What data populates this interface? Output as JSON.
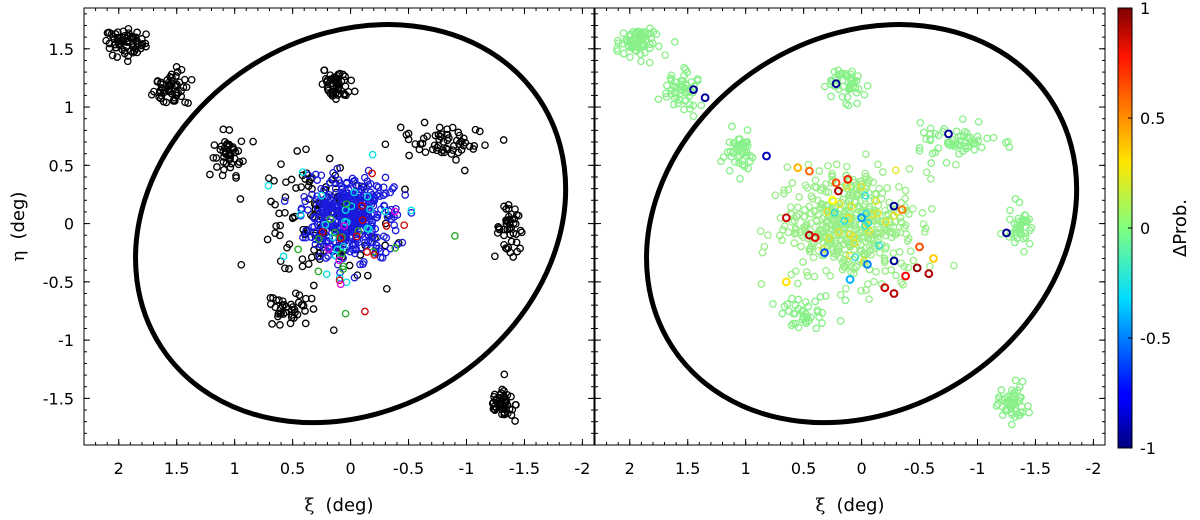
{
  "chart_data": [
    {
      "type": "scatter",
      "panel": "left",
      "xlabel_symbol": "ξ",
      "xlabel_unit": "(deg)",
      "ylabel_symbol": "η",
      "ylabel_unit": "(deg)",
      "xlim": [
        2.3,
        -2.1
      ],
      "ylim": [
        -1.9,
        1.85
      ],
      "xticks": [
        2,
        1.5,
        1,
        0.5,
        0,
        -0.5,
        -1,
        -1.5,
        -2
      ],
      "xtick_labels": [
        "2",
        "1.5",
        "1",
        "0.5",
        "0",
        "-0.5",
        "-1",
        "-1.5",
        "-2"
      ],
      "yticks": [
        1.5,
        1,
        0.5,
        0,
        -0.5,
        -1,
        -1.5
      ],
      "ytick_labels": [
        "1.5",
        "1",
        "0.5",
        "0",
        "-0.5",
        "-1",
        "-1.5"
      ],
      "ellipse": {
        "center": [
          0,
          0
        ],
        "semi_major": 1.95,
        "semi_minor": 1.6,
        "angle_deg": -33
      },
      "clusters": [
        {
          "center": [
            1.95,
            1.55
          ],
          "spread": [
            0.15,
            0.1
          ],
          "n": 70,
          "color": "#000000"
        },
        {
          "center": [
            1.55,
            1.15
          ],
          "spread": [
            0.13,
            0.13
          ],
          "n": 55,
          "color": "#000000"
        },
        {
          "center": [
            0.12,
            1.2
          ],
          "spread": [
            0.12,
            0.13
          ],
          "n": 50,
          "color": "#000000"
        },
        {
          "center": [
            1.05,
            0.6
          ],
          "spread": [
            0.1,
            0.15
          ],
          "n": 45,
          "color": "#000000"
        },
        {
          "center": [
            -0.8,
            0.7
          ],
          "spread": [
            0.3,
            0.12
          ],
          "n": 60,
          "color": "#000000"
        },
        {
          "center": [
            -1.38,
            -0.05
          ],
          "spread": [
            0.1,
            0.15
          ],
          "n": 45,
          "color": "#000000"
        },
        {
          "center": [
            -1.3,
            -1.55
          ],
          "spread": [
            0.1,
            0.13
          ],
          "n": 50,
          "color": "#000000"
        },
        {
          "center": [
            0.5,
            -0.75
          ],
          "spread": [
            0.2,
            0.12
          ],
          "n": 40,
          "color": "#000000"
        },
        {
          "center": [
            0.3,
            0.05
          ],
          "spread": [
            0.45,
            0.4
          ],
          "n": 120,
          "color": "#000000"
        },
        {
          "center": [
            0.0,
            0.05
          ],
          "spread": [
            0.3,
            0.3
          ],
          "n": 420,
          "color": "#1a1adc"
        },
        {
          "center": [
            0.0,
            0.0
          ],
          "spread": [
            0.45,
            0.45
          ],
          "n": 25,
          "color": "#00e0e0"
        },
        {
          "center": [
            0.0,
            -0.2
          ],
          "spread": [
            0.5,
            0.4
          ],
          "n": 15,
          "color": "#22aa22"
        },
        {
          "center": [
            0.0,
            0.0
          ],
          "spread": [
            0.45,
            0.4
          ],
          "n": 12,
          "color": "#cc0000"
        },
        {
          "center": [
            0.0,
            -0.3
          ],
          "spread": [
            0.4,
            0.3
          ],
          "n": 5,
          "color": "#e000e0"
        }
      ]
    },
    {
      "type": "scatter",
      "panel": "right",
      "xlabel_symbol": "ξ",
      "xlabel_unit": "(deg)",
      "xlim": [
        2.3,
        -2.1
      ],
      "ylim": [
        -1.9,
        1.85
      ],
      "xticks": [
        2,
        1.5,
        1,
        0.5,
        0,
        -0.5,
        -1,
        -1.5,
        -2
      ],
      "xtick_labels": [
        "2",
        "1.5",
        "1",
        "0.5",
        "0",
        "-0.5",
        "-1",
        "-1.5",
        "-2"
      ],
      "ellipse": {
        "center": [
          0,
          0
        ],
        "semi_major": 1.95,
        "semi_minor": 1.6,
        "angle_deg": -33
      },
      "clusters": [
        {
          "center": [
            1.95,
            1.55
          ],
          "spread": [
            0.15,
            0.1
          ],
          "n": 70,
          "color": "#88f088"
        },
        {
          "center": [
            1.55,
            1.15
          ],
          "spread": [
            0.13,
            0.13
          ],
          "n": 55,
          "color": "#88f088"
        },
        {
          "center": [
            0.12,
            1.2
          ],
          "spread": [
            0.12,
            0.13
          ],
          "n": 50,
          "color": "#88f088"
        },
        {
          "center": [
            1.05,
            0.6
          ],
          "spread": [
            0.1,
            0.15
          ],
          "n": 45,
          "color": "#88f088"
        },
        {
          "center": [
            -0.8,
            0.7
          ],
          "spread": [
            0.3,
            0.12
          ],
          "n": 60,
          "color": "#88f088"
        },
        {
          "center": [
            -1.38,
            -0.05
          ],
          "spread": [
            0.1,
            0.15
          ],
          "n": 45,
          "color": "#88f088"
        },
        {
          "center": [
            -1.3,
            -1.55
          ],
          "spread": [
            0.1,
            0.13
          ],
          "n": 50,
          "color": "#88f088"
        },
        {
          "center": [
            0.5,
            -0.75
          ],
          "spread": [
            0.2,
            0.12
          ],
          "n": 40,
          "color": "#88f088"
        },
        {
          "center": [
            0.1,
            0.0
          ],
          "spread": [
            0.45,
            0.4
          ],
          "n": 480,
          "color": "#99ee88"
        },
        {
          "center": [
            0.0,
            0.0
          ],
          "spread": [
            0.35,
            0.35
          ],
          "n": 25,
          "color": "#e8e020"
        },
        {
          "center": [
            0.0,
            0.0
          ],
          "spread": [
            0.3,
            0.3
          ],
          "n": 8,
          "color": "#22dddd"
        }
      ],
      "highlight_points": [
        {
          "x": 1.45,
          "y": 1.15,
          "v": -0.95
        },
        {
          "x": 1.35,
          "y": 1.08,
          "v": -0.95
        },
        {
          "x": 0.22,
          "y": 1.2,
          "v": -0.95
        },
        {
          "x": -0.75,
          "y": 0.77,
          "v": -0.95
        },
        {
          "x": 0.82,
          "y": 0.58,
          "v": -0.9
        },
        {
          "x": -1.25,
          "y": -0.08,
          "v": -0.95
        },
        {
          "x": -0.28,
          "y": 0.15,
          "v": -0.95
        },
        {
          "x": -0.28,
          "y": -0.32,
          "v": -0.95
        },
        {
          "x": 0.65,
          "y": 0.05,
          "v": 0.85
        },
        {
          "x": 0.45,
          "y": -0.1,
          "v": 0.9
        },
        {
          "x": 0.4,
          "y": -0.12,
          "v": 0.8
        },
        {
          "x": 0.2,
          "y": 0.28,
          "v": 0.9
        },
        {
          "x": 0.12,
          "y": 0.38,
          "v": 0.7
        },
        {
          "x": 0.22,
          "y": 0.35,
          "v": 0.6
        },
        {
          "x": 0.45,
          "y": 0.45,
          "v": 0.55
        },
        {
          "x": -0.35,
          "y": 0.12,
          "v": 0.5
        },
        {
          "x": -0.2,
          "y": -0.55,
          "v": 0.85
        },
        {
          "x": -0.28,
          "y": -0.6,
          "v": 0.9
        },
        {
          "x": -0.48,
          "y": -0.38,
          "v": 0.95
        },
        {
          "x": -0.58,
          "y": -0.43,
          "v": 0.9
        },
        {
          "x": -0.38,
          "y": -0.45,
          "v": 0.75
        },
        {
          "x": -0.5,
          "y": -0.2,
          "v": 0.6
        },
        {
          "x": 0.55,
          "y": 0.48,
          "v": 0.4
        },
        {
          "x": 0.65,
          "y": -0.5,
          "v": 0.3
        },
        {
          "x": -0.62,
          "y": -0.3,
          "v": 0.35
        },
        {
          "x": 0.25,
          "y": 0.2,
          "v": 0.25
        },
        {
          "x": 0.32,
          "y": -0.25,
          "v": -0.6
        },
        {
          "x": -0.05,
          "y": -0.35,
          "v": -0.5
        },
        {
          "x": 0.0,
          "y": 0.05,
          "v": -0.45
        },
        {
          "x": 0.1,
          "y": -0.48,
          "v": -0.4
        }
      ],
      "colorbar": {
        "label": "ΔProb.",
        "range": [
          -1,
          1
        ],
        "ticks": [
          1,
          0.5,
          0,
          -0.5,
          -1
        ],
        "tick_labels": [
          "1",
          "0.5",
          "0",
          "-0.5",
          "-1"
        ],
        "colormap": "jet"
      }
    }
  ]
}
